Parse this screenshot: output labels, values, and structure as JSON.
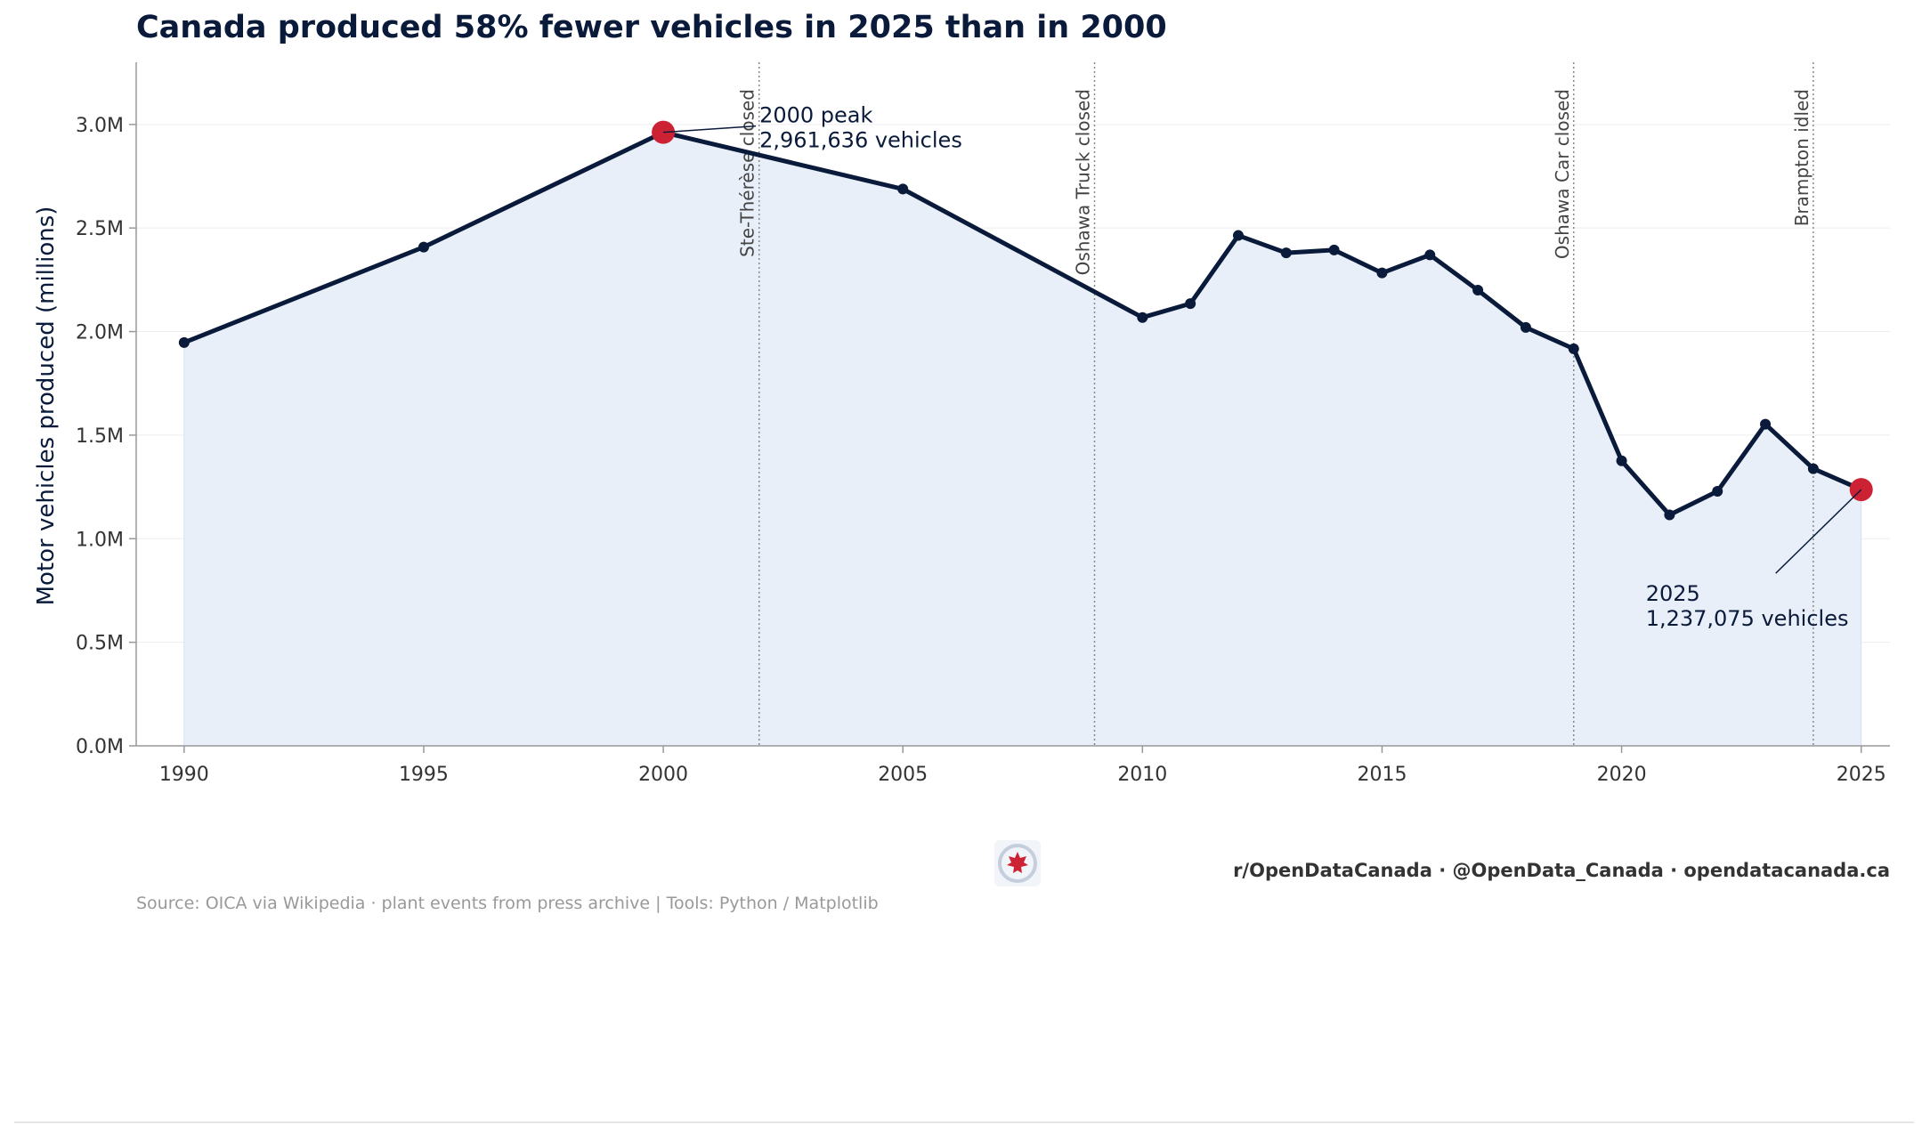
{
  "chart_data": {
    "type": "area",
    "title": "Canada produced 58% fewer vehicles in 2025 than in 2000",
    "ylabel": "Motor vehicles produced (millions)",
    "xlabel": "",
    "xlim": [
      1989,
      2025.6
    ],
    "ylim": [
      0,
      3.3
    ],
    "xticks": [
      1990,
      1995,
      2000,
      2005,
      2010,
      2015,
      2020,
      2025
    ],
    "yticks": [
      0,
      0.5,
      1.0,
      1.5,
      2.0,
      2.5,
      3.0
    ],
    "ytick_labels": [
      "0.0M",
      "0.5M",
      "1.0M",
      "1.5M",
      "2.0M",
      "2.5M",
      "3.0M"
    ],
    "grid": "horizontal",
    "colors": {
      "line": "#0a1a3a",
      "fill": "#e8eff9",
      "highlight": "#cc2233",
      "event_line": "#888888"
    },
    "x": [
      1990,
      1995,
      2000,
      2005,
      2010,
      2011,
      2012,
      2013,
      2014,
      2015,
      2016,
      2017,
      2018,
      2019,
      2020,
      2021,
      2022,
      2023,
      2024,
      2025
    ],
    "y": [
      1.947,
      2.408,
      2.962,
      2.688,
      2.068,
      2.135,
      2.464,
      2.38,
      2.394,
      2.283,
      2.37,
      2.2,
      2.02,
      1.917,
      1.376,
      1.115,
      1.229,
      1.553,
      1.338,
      1.237
    ],
    "highlights": [
      {
        "x": 2000,
        "y": 2.962,
        "label_line1": "2000 peak",
        "label_line2": "2,961,636 vehicles"
      },
      {
        "x": 2025,
        "y": 1.237,
        "label_line1": "2025",
        "label_line2": "1,237,075 vehicles"
      }
    ],
    "events": [
      {
        "x": 2002,
        "label": "Ste-Thérèse closed"
      },
      {
        "x": 2009,
        "label": "Oshawa Truck closed"
      },
      {
        "x": 2019,
        "label": "Oshawa Car closed"
      },
      {
        "x": 2024,
        "label": "Brampton idled"
      }
    ]
  },
  "footer": {
    "credits": "r/OpenDataCanada  ·  @OpenData_Canada  ·  opendatacanada.ca",
    "source": "Source: OICA via Wikipedia · plant events from press archive  |  Tools: Python / Matplotlib",
    "logo_icon": "maple-leaf-logo-icon"
  }
}
